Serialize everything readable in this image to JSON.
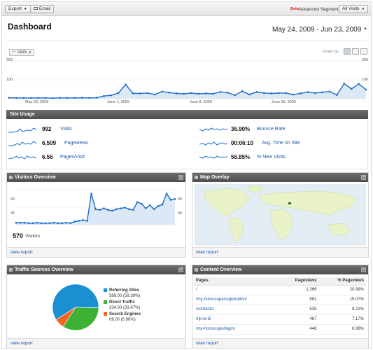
{
  "toolbar": {
    "export_label": "Export",
    "email_label": "Email",
    "beta": "Beta",
    "segments_label": "Advanced Segments:",
    "segments_value": "All Visits"
  },
  "header": {
    "title": "Dashboard",
    "date_range": "May 24, 2009 - Jun 23, 2009"
  },
  "graph": {
    "metric": "Visits",
    "graph_by_label": "Graph by:"
  },
  "chart_data": [
    {
      "type": "area",
      "title": "",
      "x_tick_labels": [
        "May 25, 2009",
        "June 1, 2009",
        "June 8, 2009",
        "June 15, 2009"
      ],
      "y_ticks_left": [
        "200",
        "100"
      ],
      "y_ticks_right": [
        "200",
        "100"
      ],
      "ylim": [
        0,
        200
      ],
      "series": [
        {
          "values": [
            5,
            4,
            4,
            4,
            4,
            4,
            3,
            4,
            4,
            4,
            5,
            4,
            5,
            14,
            18,
            30,
            75,
            28,
            28,
            30,
            22,
            38,
            32,
            28,
            26,
            30,
            26,
            28,
            26,
            36,
            32,
            18,
            40,
            22,
            36,
            30,
            28,
            30,
            30,
            22,
            28,
            35,
            30,
            34,
            38,
            20,
            80,
            52,
            78,
            48
          ]
        }
      ],
      "color": "#1b6ac9",
      "fill": "#dbe8f5"
    },
    {
      "type": "area",
      "title": "",
      "y_ticks_left": [
        "90",
        "45"
      ],
      "y_ticks_right": [
        "90",
        "45"
      ],
      "ylim": [
        0,
        90
      ],
      "series": [
        {
          "values": [
            5,
            5,
            5,
            4,
            4,
            5,
            4,
            4,
            4,
            5,
            4,
            4,
            5,
            4,
            8,
            10,
            12,
            10,
            80,
            40,
            38,
            42,
            38,
            36,
            40,
            42,
            44,
            40,
            38,
            58,
            54,
            42,
            50,
            40,
            48,
            52,
            80,
            64,
            66
          ]
        }
      ],
      "color": "#1b6ac9",
      "fill": "#dbe8f5"
    },
    {
      "type": "pie",
      "title": "",
      "categories": [
        "Referring Sites",
        "Direct Traffic",
        "Search Engines"
      ],
      "values": [
        589.0,
        334.0,
        69.0
      ],
      "percents": [
        59.38,
        33.67,
        6.96
      ],
      "colors": [
        "#1a8fd1",
        "#3db135",
        "#f26522"
      ]
    }
  ],
  "site_usage": {
    "title": "Site Usage",
    "items": [
      {
        "value": "992",
        "label": "Visits"
      },
      {
        "value": "6,509",
        "label": "Pageviews"
      },
      {
        "value": "6.56",
        "label": "Pages/Visit"
      },
      {
        "value": "36.90%",
        "label": "Bounce Rate"
      },
      {
        "value": "00:06:10",
        "label": "Avg. Time on Site"
      },
      {
        "value": "56.85%",
        "label": "% New Visits"
      }
    ]
  },
  "visitors_overview": {
    "title": "Visitors Overview",
    "count": "570",
    "count_label": "Visitors",
    "view_report": "view report"
  },
  "map_overlay": {
    "title": "Map Overlay",
    "view_report": "view report"
  },
  "traffic_sources": {
    "title": "Traffic Sources Overview",
    "legend": [
      {
        "name": "Referring Sites",
        "detail": "589.00 (59.38%)",
        "color": "#1a8fd1"
      },
      {
        "name": "Direct Traffic",
        "detail": "334.00 (33.67%)",
        "color": "#3db135"
      },
      {
        "name": "Search Engines",
        "detail": "69.00 (6.96%)",
        "color": "#f26522"
      }
    ],
    "view_report": "view report"
  },
  "content_overview": {
    "title": "Content Overview",
    "columns": [
      "Pages",
      "Pageviews",
      "% Pageviews"
    ],
    "rows": [
      {
        "page": "/",
        "views": "1,366",
        "pct": "20.99%"
      },
      {
        "page": "/my-horoscope/registration/",
        "views": "981",
        "pct": "15.07%"
      },
      {
        "page": "/contacts/",
        "views": "535",
        "pct": "8.22%"
      },
      {
        "page": "/rip-ie-6/",
        "views": "467",
        "pct": "7.17%"
      },
      {
        "page": "/my-horoscope/login/",
        "views": "448",
        "pct": "6.88%"
      }
    ],
    "view_report": "view report"
  }
}
